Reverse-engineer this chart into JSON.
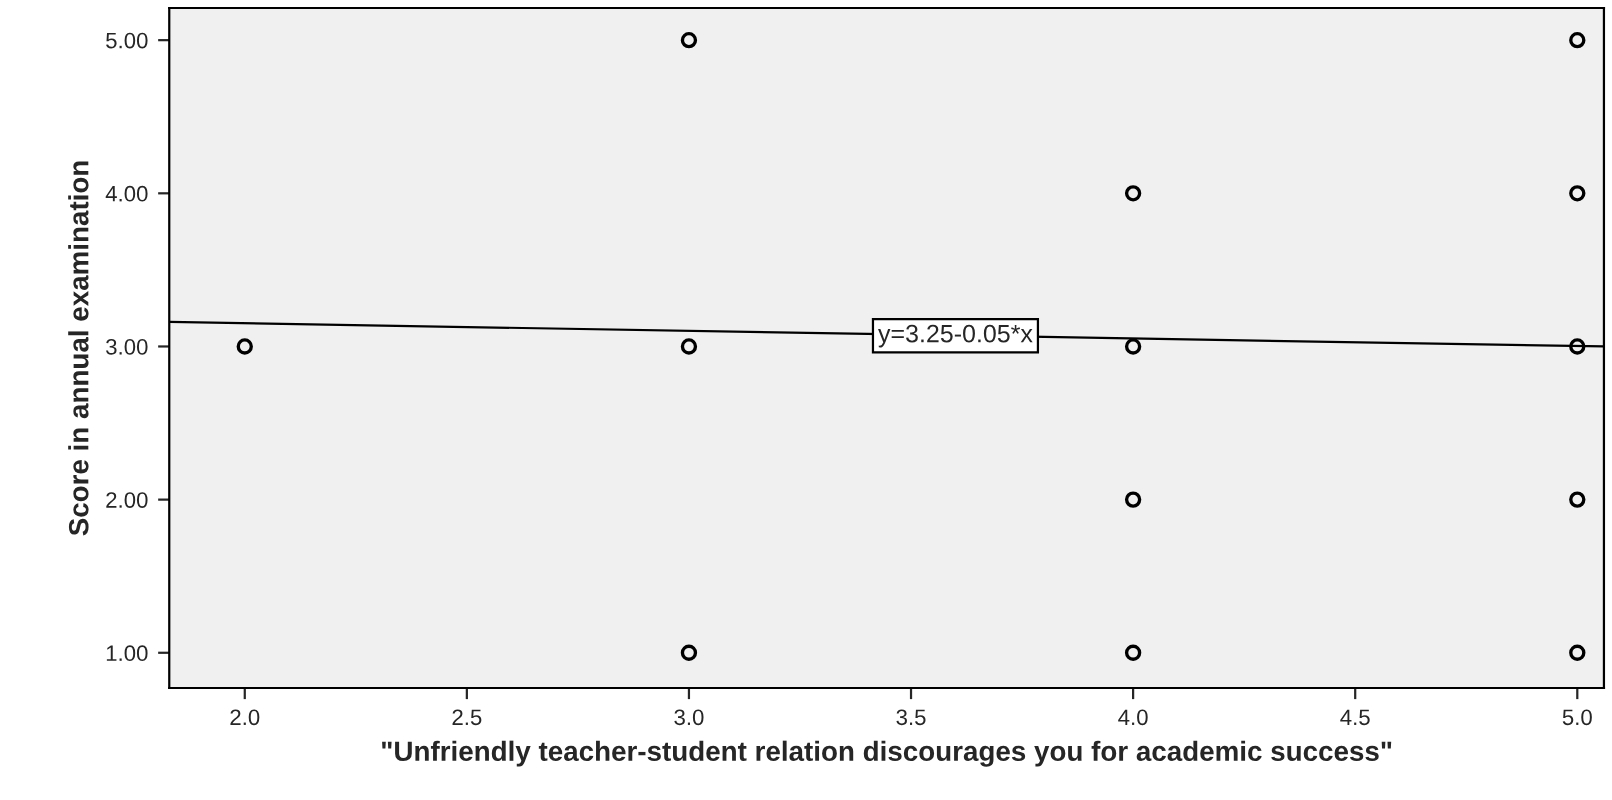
{
  "chart_data": {
    "type": "scatter",
    "xlabel": "\"Unfriendly teacher-student relation discourages you for academic success\"",
    "ylabel": "Score in annual examination",
    "series": [
      {
        "color": "#000000",
        "marker": "circle",
        "x": [
          2,
          3,
          3,
          3,
          4,
          4,
          4,
          4,
          5,
          5,
          5,
          5,
          5
        ],
        "values": [
          3,
          5,
          3,
          1,
          4,
          3,
          2,
          1,
          5,
          4,
          3,
          2,
          1
        ]
      },
      {
        "type": "line",
        "color": "#000000",
        "x": [
          1.83,
          5.06
        ],
        "values": [
          3.16,
          3.0
        ]
      }
    ],
    "annotations": [
      {
        "text": "y=3.25-0.05*x",
        "x": 3.6,
        "y": 3.07
      }
    ],
    "xlim": [
      1.83,
      5.06
    ],
    "ylim": [
      0.77,
      5.21
    ],
    "xticks": [
      {
        "value": 2,
        "label": "2.0"
      },
      {
        "value": 2.5,
        "label": "2.5"
      },
      {
        "value": 3,
        "label": "3.0"
      },
      {
        "value": 3.5,
        "label": "3.5"
      },
      {
        "value": 4,
        "label": "4.0"
      },
      {
        "value": 4.5,
        "label": "4.5"
      },
      {
        "value": 5,
        "label": "5.0"
      }
    ],
    "yticks": [
      {
        "value": 1,
        "label": "1.00"
      },
      {
        "value": 2,
        "label": "2.00"
      },
      {
        "value": 3,
        "label": "3.00"
      },
      {
        "value": 4,
        "label": "4.00"
      },
      {
        "value": 5,
        "label": "5.00"
      }
    ],
    "grid": false,
    "legend": false
  }
}
